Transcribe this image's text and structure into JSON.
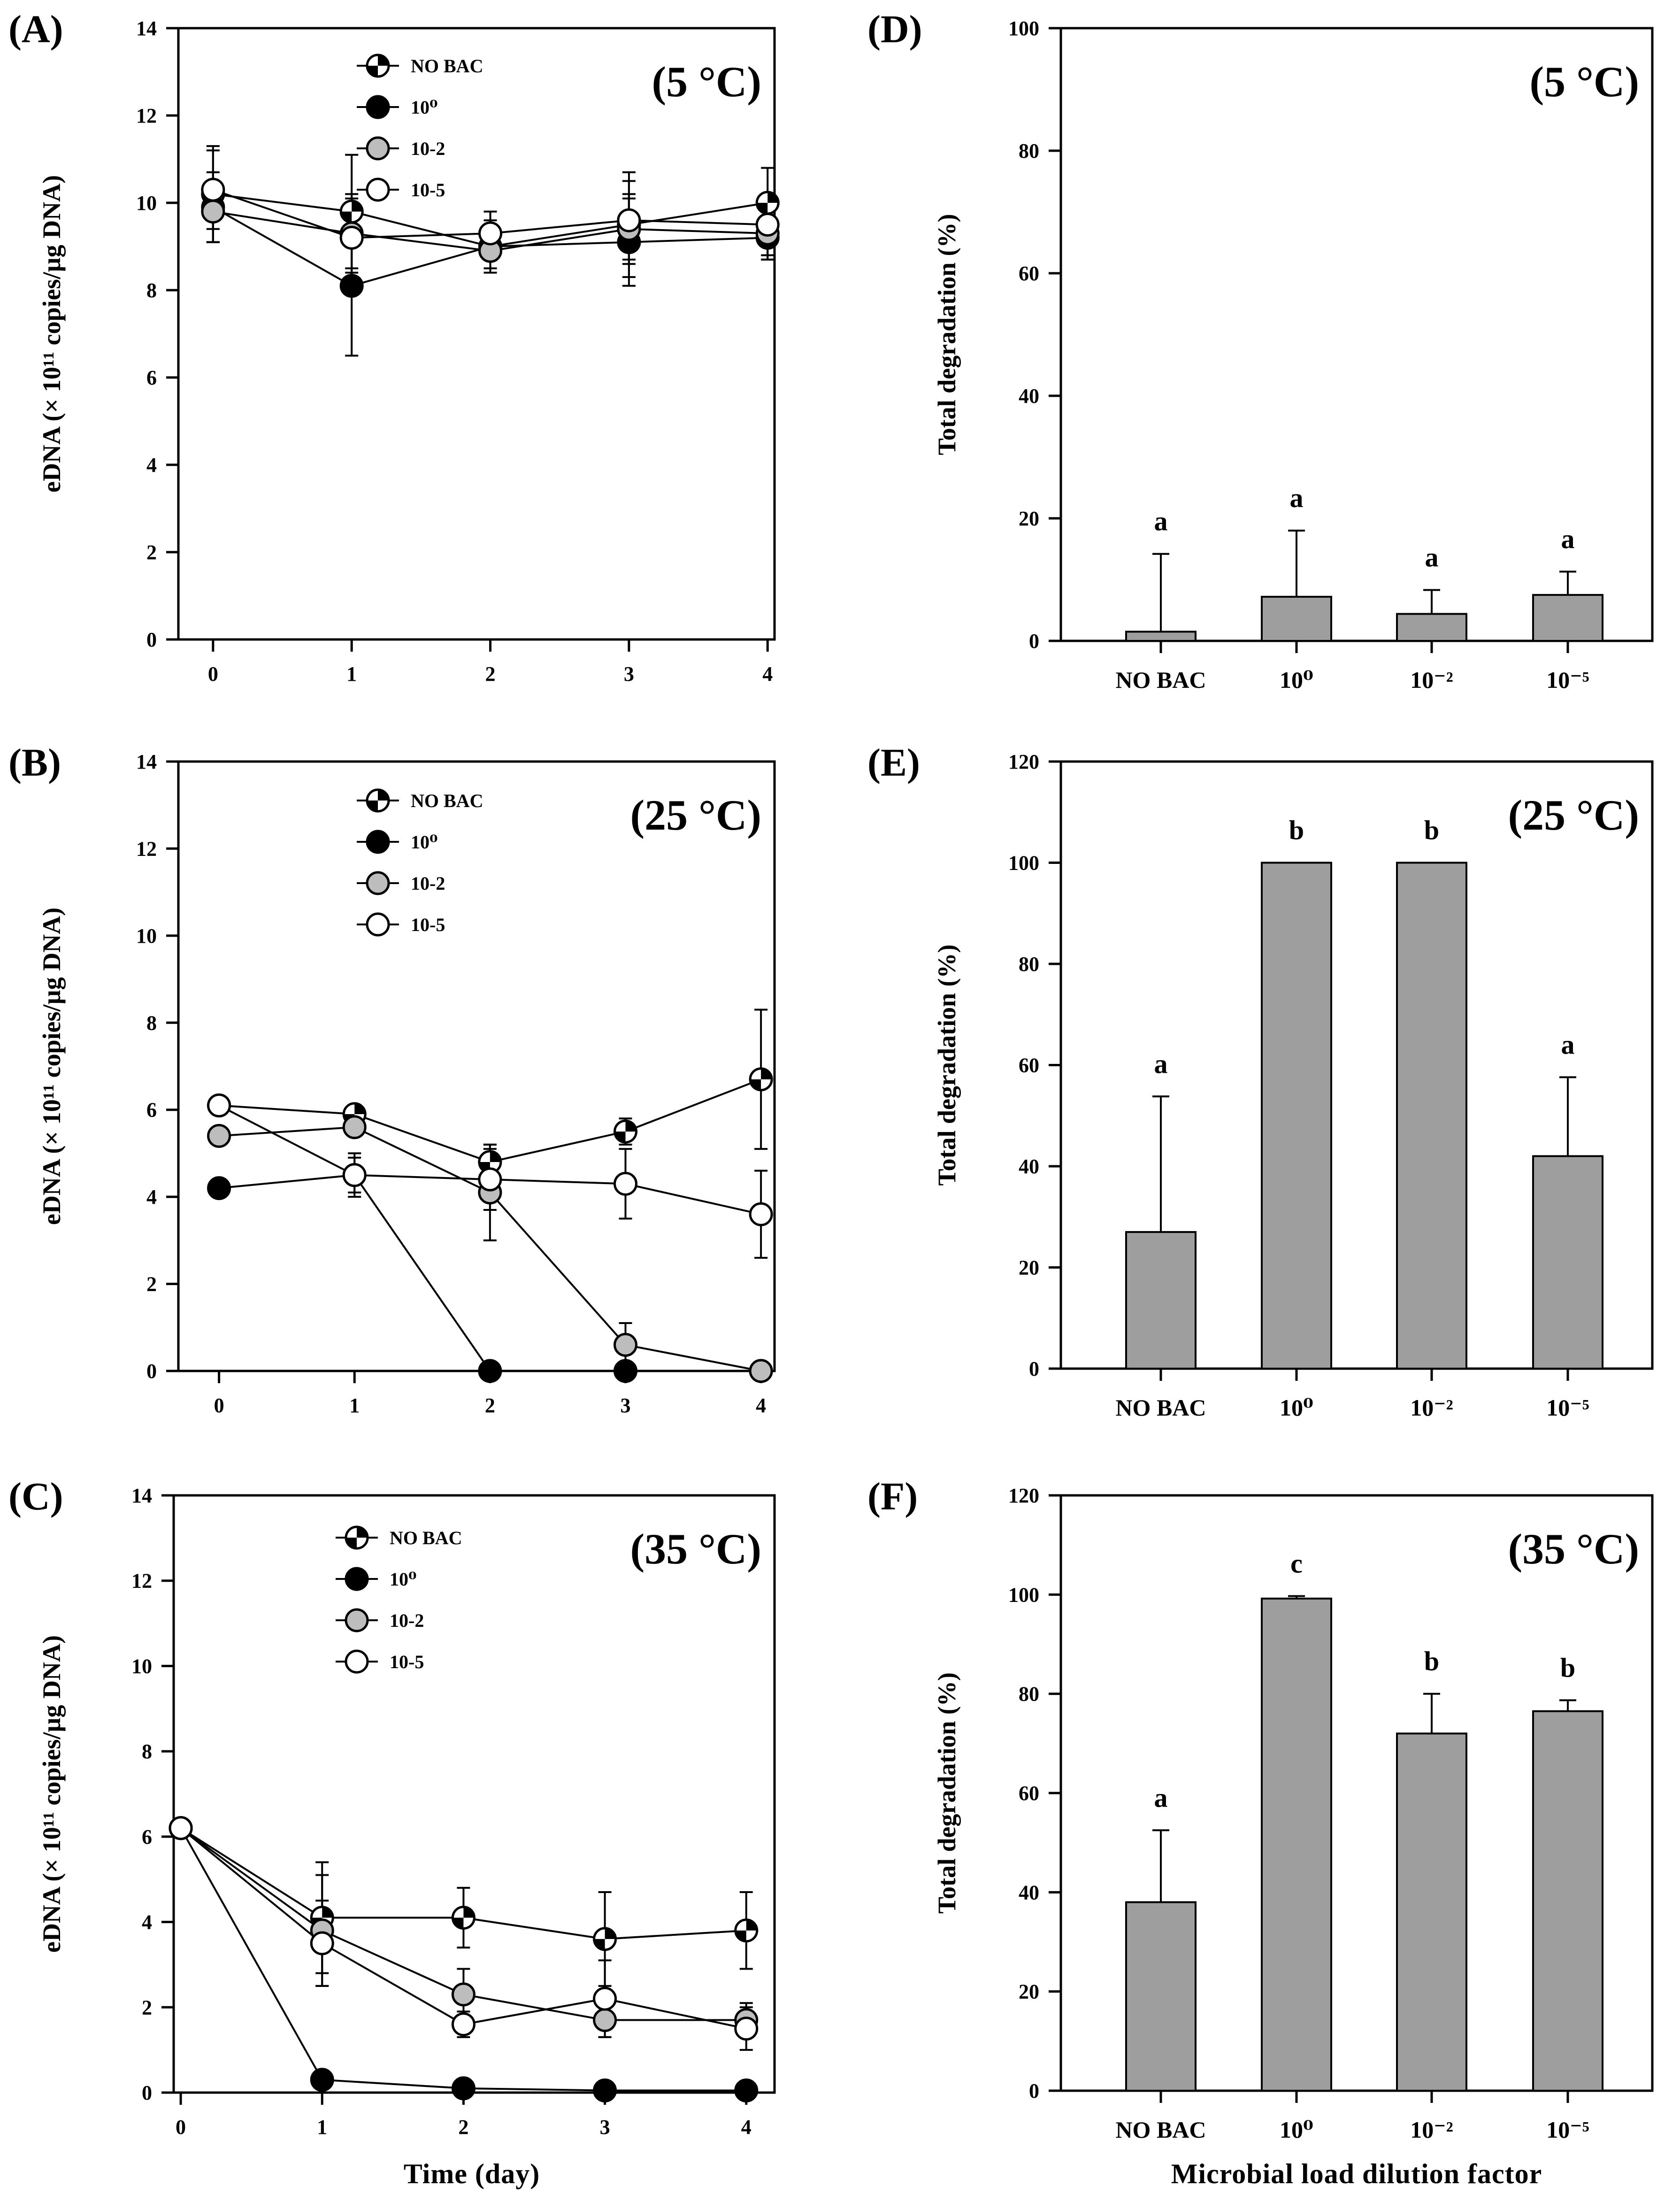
{
  "colors": {
    "no_bac": "#000000",
    "dilution_1e0": "#000000",
    "dilution_1e-2": "#bdbdbd",
    "dilution_1e-5": "#ffffff",
    "bar_fill": "#9e9e9e",
    "axis": "#000000"
  },
  "legend": {
    "no_bac": "NO BAC",
    "d0": "10⁰",
    "d2": "10-2",
    "d5": "10-5"
  },
  "axes": {
    "line_ylabel": "eDNA (× 10¹¹ copies/µg DNA)",
    "bar_ylabel": "Total degradation (%)",
    "line_xlabel": "Time (day)",
    "bar_xlabel": "Microbial load dilution factor"
  },
  "chart_data": [
    {
      "panel": "(A)",
      "temp": "(5 °C)",
      "type": "line",
      "x": [
        0,
        1,
        2,
        3,
        4
      ],
      "xlim": [
        -0.25,
        4.05
      ],
      "ylim": [
        0,
        14
      ],
      "yticks": [
        0,
        2,
        4,
        6,
        8,
        10,
        12,
        14
      ],
      "series": [
        {
          "name": "NO BAC",
          "values": [
            10.2,
            9.8,
            9.0,
            9.5,
            10.0
          ],
          "err": [
            1.1,
            1.3,
            0.6,
            1.2,
            0.8
          ]
        },
        {
          "name": "10⁰",
          "values": [
            9.9,
            8.1,
            9.0,
            9.1,
            9.2
          ],
          "err": [
            0.8,
            1.6,
            0.5,
            1.0,
            0.5
          ]
        },
        {
          "name": "10-2",
          "values": [
            9.8,
            9.3,
            8.9,
            9.4,
            9.3
          ],
          "err": [
            0.7,
            0.9,
            0.4,
            0.8,
            0.6
          ]
        },
        {
          "name": "10-5",
          "values": [
            10.3,
            9.2,
            9.3,
            9.6,
            9.5
          ],
          "err": [
            0.9,
            0.9,
            0.5,
            0.9,
            0.7
          ]
        }
      ]
    },
    {
      "panel": "(B)",
      "temp": "(25 °C)",
      "type": "line",
      "x": [
        0,
        1,
        2,
        3,
        4
      ],
      "xlim": [
        -0.3,
        4.1
      ],
      "ylim": [
        0,
        14
      ],
      "yticks": [
        0,
        2,
        4,
        6,
        8,
        10,
        12,
        14
      ],
      "series": [
        {
          "name": "NO BAC",
          "values": [
            6.1,
            5.9,
            4.8,
            5.5,
            6.7
          ],
          "err": [
            0.0,
            0.2,
            0.4,
            0.3,
            1.6
          ]
        },
        {
          "name": "10⁰",
          "values": [
            4.2,
            4.5,
            0.0,
            0.0,
            0.0
          ],
          "err": [
            0.0,
            0.5,
            0.0,
            0.0,
            0.0
          ]
        },
        {
          "name": "10-2",
          "values": [
            5.4,
            5.6,
            4.1,
            0.6,
            0.0
          ],
          "err": [
            0.0,
            0.2,
            1.1,
            0.5,
            0.0
          ]
        },
        {
          "name": "10-5",
          "values": [
            6.1,
            4.5,
            4.4,
            4.3,
            3.6
          ],
          "err": [
            0.0,
            0.4,
            0.7,
            0.8,
            1.0
          ]
        }
      ]
    },
    {
      "panel": "(C)",
      "temp": "(35 °C)",
      "type": "line",
      "x": [
        0,
        1,
        2,
        3,
        4
      ],
      "xlim": [
        -0.05,
        4.2
      ],
      "ylim": [
        0,
        14
      ],
      "yticks": [
        0,
        2,
        4,
        6,
        8,
        10,
        12,
        14
      ],
      "series": [
        {
          "name": "NO BAC",
          "values": [
            6.2,
            4.1,
            4.1,
            3.6,
            3.8
          ],
          "err": [
            0.0,
            1.3,
            0.7,
            1.1,
            0.9
          ]
        },
        {
          "name": "10⁰",
          "values": [
            6.2,
            0.3,
            0.1,
            0.05,
            0.05
          ],
          "err": [
            0.0,
            0.0,
            0.0,
            0.0,
            0.0
          ]
        },
        {
          "name": "10-2",
          "values": [
            6.2,
            3.8,
            2.3,
            1.7,
            1.7
          ],
          "err": [
            0.0,
            1.3,
            0.6,
            0.4,
            0.4
          ]
        },
        {
          "name": "10-5",
          "values": [
            6.2,
            3.5,
            1.6,
            2.2,
            1.5
          ],
          "err": [
            0.0,
            1.0,
            0.3,
            0.9,
            0.5
          ]
        }
      ]
    },
    {
      "panel": "(D)",
      "temp": "(5 °C)",
      "type": "bar",
      "categories": [
        "NO BAC",
        "10⁰",
        "10⁻²",
        "10⁻⁵"
      ],
      "values": [
        1.5,
        7.2,
        4.4,
        7.5
      ],
      "err": [
        12.7,
        10.8,
        3.9,
        3.8
      ],
      "sig": [
        "a",
        "a",
        "a",
        "a"
      ],
      "ylim": [
        0,
        100
      ],
      "yticks": [
        0,
        20,
        40,
        60,
        80,
        100
      ]
    },
    {
      "panel": "(E)",
      "temp": "(25 °C)",
      "type": "bar",
      "categories": [
        "NO BAC",
        "10⁰",
        "10⁻²",
        "10⁻⁵"
      ],
      "values": [
        27.0,
        100.0,
        100.0,
        42.0
      ],
      "err": [
        26.8,
        0.0,
        0.0,
        15.6
      ],
      "sig": [
        "a",
        "b",
        "b",
        "a"
      ],
      "ylim": [
        0,
        120
      ],
      "yticks": [
        0,
        20,
        40,
        60,
        80,
        100,
        120
      ]
    },
    {
      "panel": "(F)",
      "temp": "(35 °C)",
      "type": "bar",
      "categories": [
        "NO BAC",
        "10⁰",
        "10⁻²",
        "10⁻⁵"
      ],
      "values": [
        38.0,
        99.2,
        72.0,
        76.5
      ],
      "err": [
        14.5,
        0.5,
        8.0,
        2.2
      ],
      "sig": [
        "a",
        "c",
        "b",
        "b"
      ],
      "ylim": [
        0,
        120
      ],
      "yticks": [
        0,
        20,
        40,
        60,
        80,
        100,
        120
      ]
    }
  ]
}
